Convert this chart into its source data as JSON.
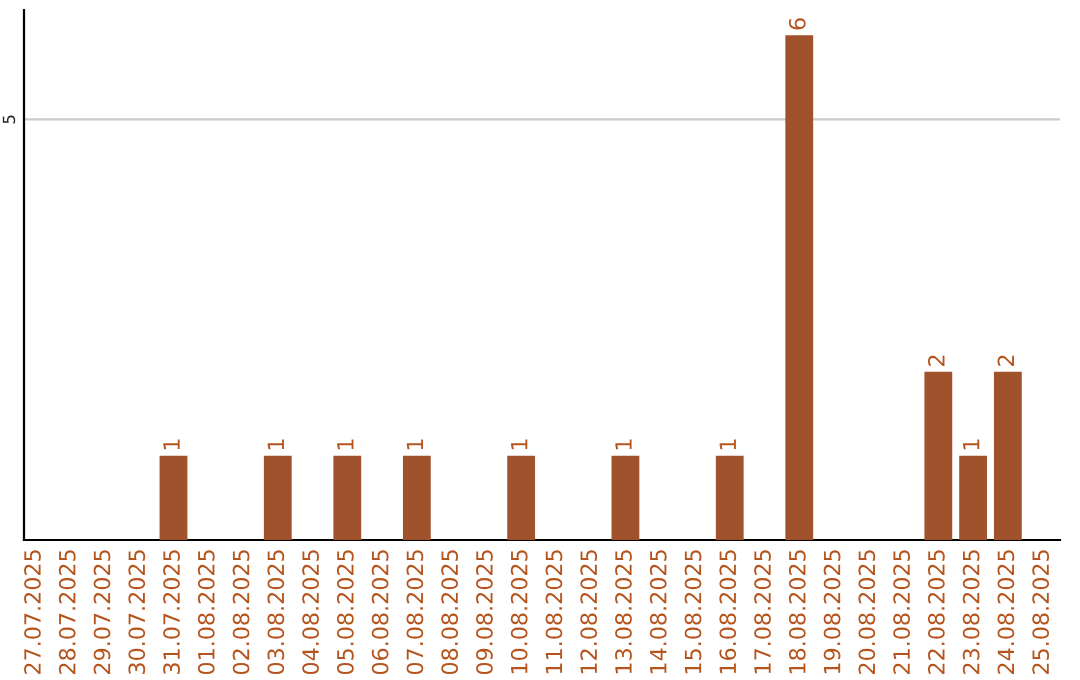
{
  "chart_data": {
    "type": "bar",
    "categories": [
      "27.07.2025",
      "28.07.2025",
      "29.07.2025",
      "30.07.2025",
      "31.07.2025",
      "01.08.2025",
      "02.08.2025",
      "03.08.2025",
      "04.08.2025",
      "05.08.2025",
      "06.08.2025",
      "07.08.2025",
      "08.08.2025",
      "09.08.2025",
      "10.08.2025",
      "11.08.2025",
      "12.08.2025",
      "13.08.2025",
      "14.08.2025",
      "15.08.2025",
      "16.08.2025",
      "17.08.2025",
      "18.08.2025",
      "19.08.2025",
      "20.08.2025",
      "21.08.2025",
      "22.08.2025",
      "23.08.2025",
      "24.08.2025",
      "25.08.2025"
    ],
    "values": [
      0,
      0,
      0,
      0,
      1,
      0,
      0,
      1,
      0,
      1,
      0,
      1,
      0,
      0,
      1,
      0,
      0,
      1,
      0,
      0,
      1,
      0,
      6,
      0,
      0,
      0,
      2,
      1,
      2,
      0
    ],
    "value_labels": [
      null,
      null,
      null,
      null,
      "1",
      null,
      null,
      "1",
      null,
      "1",
      null,
      "1",
      null,
      null,
      "1",
      null,
      null,
      "1",
      null,
      null,
      "1",
      null,
      "6",
      null,
      null,
      null,
      "2",
      "1",
      "2",
      null
    ],
    "color": "#a0522d",
    "ylim": [
      0,
      6.3
    ],
    "yticks": [
      5
    ],
    "grid": "y"
  }
}
